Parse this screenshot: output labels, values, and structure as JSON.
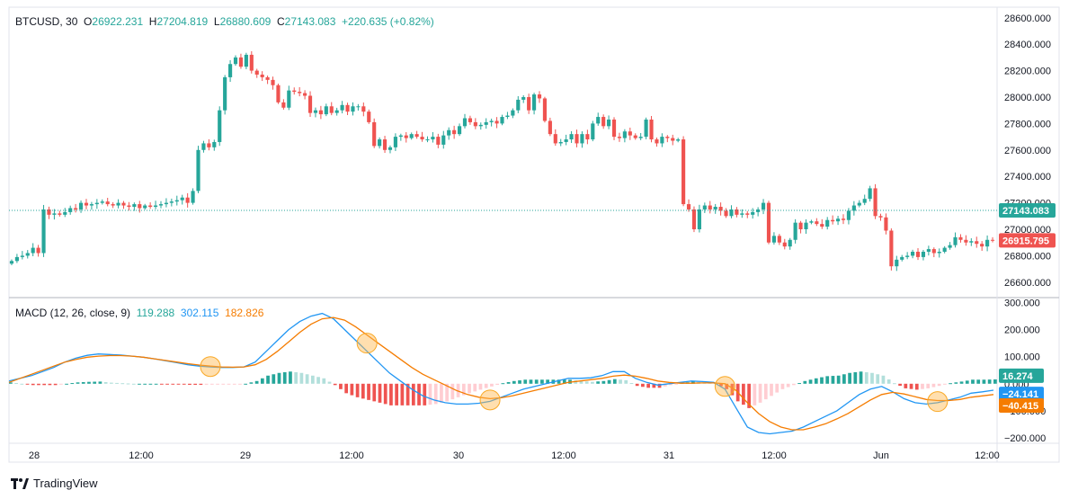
{
  "legend": {
    "symbol": "BTCUSD",
    "interval": "30",
    "open_key": "O",
    "open": "26922.231",
    "high_key": "H",
    "high": "27204.819",
    "low_key": "L",
    "low": "26880.609",
    "close_key": "C",
    "close": "27143.083",
    "change": "+220.635 (+0.82%)"
  },
  "macd_legend": {
    "title": "MACD (12, 26, close, 9)",
    "hist": "119.288",
    "macd": "302.115",
    "signal": "182.826"
  },
  "price_badges": [
    {
      "label": "27143.083",
      "value": 27143.083,
      "color": "#26a69a"
    },
    {
      "label": "26915.795",
      "value": 26915.795,
      "color": "#ef5350"
    }
  ],
  "macd_badges": [
    {
      "label": "16.274",
      "value": 16.274,
      "color": "#26a69a"
    },
    {
      "label": "−24.141",
      "value": -24.141,
      "color": "#2196f3"
    },
    {
      "label": "−40.415",
      "value": -40.415,
      "color": "#f57c00"
    }
  ],
  "brand": "TradingView",
  "colors": {
    "up": "#26a69a",
    "down": "#ef5350",
    "macd": "#2196f3",
    "signal": "#f57c00",
    "hist_up_strong": "#26a69a",
    "hist_up_weak": "#b2dfdb",
    "hist_down_strong": "#ef5350",
    "hist_down_weak": "#ffcdd2",
    "highlight": "#f9a825"
  },
  "chart_data": [
    {
      "type": "candlestick",
      "title": "BTCUSD, 30",
      "x_ticks": [
        "28",
        "12:00",
        "29",
        "12:00",
        "30",
        "12:00",
        "31",
        "12:00",
        "Jun",
        "12:00"
      ],
      "y_ticks": [
        "28600.000",
        "28400.000",
        "28200.000",
        "28000.000",
        "27800.000",
        "27600.000",
        "27400.000",
        "27200.000",
        "27000.000",
        "26800.000",
        "26600.000"
      ],
      "ylim": [
        26490,
        28680
      ],
      "last_price_line": 27143.083,
      "closes": [
        26760,
        26790,
        26800,
        26820,
        26860,
        26820,
        27150,
        27110,
        27120,
        27110,
        27130,
        27160,
        27150,
        27200,
        27180,
        27190,
        27200,
        27210,
        27190,
        27180,
        27200,
        27180,
        27170,
        27190,
        27160,
        27180,
        27170,
        27180,
        27190,
        27200,
        27210,
        27220,
        27240,
        27200,
        27290,
        27600,
        27650,
        27620,
        27660,
        27900,
        28150,
        28250,
        28300,
        28230,
        28320,
        28200,
        28170,
        28150,
        28130,
        28090,
        27960,
        27920,
        28050,
        28040,
        28030,
        28010,
        27880,
        27900,
        27870,
        27930,
        27880,
        27900,
        27940,
        27890,
        27930,
        27930,
        27890,
        27810,
        27630,
        27680,
        27600,
        27620,
        27700,
        27710,
        27690,
        27720,
        27700,
        27680,
        27680,
        27700,
        27640,
        27710,
        27750,
        27720,
        27780,
        27840,
        27810,
        27780,
        27790,
        27810,
        27820,
        27800,
        27850,
        27860,
        27900,
        27980,
        28000,
        27900,
        28020,
        27990,
        27820,
        27720,
        27650,
        27660,
        27680,
        27720,
        27650,
        27720,
        27680,
        27800,
        27850,
        27780,
        27830,
        27700,
        27690,
        27740,
        27710,
        27690,
        27700,
        27830,
        27680,
        27650,
        27700,
        27690,
        27670,
        27680,
        27190,
        27150,
        27000,
        27150,
        27180,
        27150,
        27170,
        27140,
        27100,
        27150,
        27110,
        27120,
        27110,
        27130,
        27150,
        27200,
        26900,
        26950,
        26900,
        26870,
        26920,
        27050,
        27000,
        27050,
        27060,
        27040,
        27020,
        27070,
        27060,
        27080,
        27070,
        27140,
        27180,
        27200,
        27230,
        27310,
        27100,
        27090,
        26990,
        26720,
        26770,
        26790,
        26800,
        26830,
        26790,
        26830,
        26850,
        26820,
        26830,
        26860,
        26880,
        26940,
        26920,
        26900,
        26910,
        26890,
        26870,
        26920,
        26915
      ],
      "yaxis_scale": "linear"
    },
    {
      "type": "macd",
      "title": "MACD (12, 26, close, 9)",
      "y_ticks": [
        "300.000",
        "200.000",
        "100.000",
        "0.000",
        "-100.000",
        "-200.000"
      ],
      "ylim": [
        -210,
        315
      ],
      "macd_line": [
        10,
        20,
        30,
        45,
        60,
        80,
        95,
        105,
        110,
        108,
        106,
        102,
        98,
        92,
        85,
        78,
        70,
        65,
        62,
        60,
        60,
        62,
        80,
        120,
        160,
        200,
        230,
        250,
        260,
        240,
        200,
        160,
        120,
        80,
        40,
        10,
        -20,
        -45,
        -60,
        -70,
        -75,
        -75,
        -72,
        -65,
        -50,
        -35,
        -20,
        -10,
        0,
        10,
        20,
        20,
        22,
        30,
        45,
        45,
        20,
        5,
        -5,
        0,
        5,
        10,
        8,
        5,
        -20,
        -90,
        -160,
        -180,
        -185,
        -180,
        -175,
        -160,
        -140,
        -120,
        -100,
        -70,
        -40,
        -20,
        -10,
        -30,
        -55,
        -70,
        -75,
        -70,
        -60,
        -50,
        -35,
        -30,
        -24
      ],
      "signal_line": [
        5,
        20,
        35,
        50,
        65,
        80,
        90,
        98,
        102,
        104,
        104,
        102,
        98,
        92,
        86,
        80,
        74,
        69,
        65,
        62,
        61,
        62,
        70,
        90,
        120,
        155,
        190,
        220,
        240,
        245,
        235,
        210,
        180,
        150,
        120,
        90,
        60,
        35,
        15,
        -5,
        -25,
        -40,
        -50,
        -55,
        -52,
        -45,
        -35,
        -25,
        -15,
        -5,
        5,
        10,
        15,
        20,
        28,
        32,
        28,
        20,
        10,
        5,
        2,
        2,
        3,
        3,
        0,
        -25,
        -70,
        -110,
        -140,
        -160,
        -170,
        -170,
        -160,
        -148,
        -130,
        -110,
        -85,
        -60,
        -40,
        -32,
        -38,
        -48,
        -58,
        -62,
        -62,
        -58,
        -50,
        -45,
        -40
      ],
      "highlight_points": [
        27,
        48,
        63,
        94,
        123
      ],
      "histogram_note": "hist = macd - signal"
    }
  ]
}
